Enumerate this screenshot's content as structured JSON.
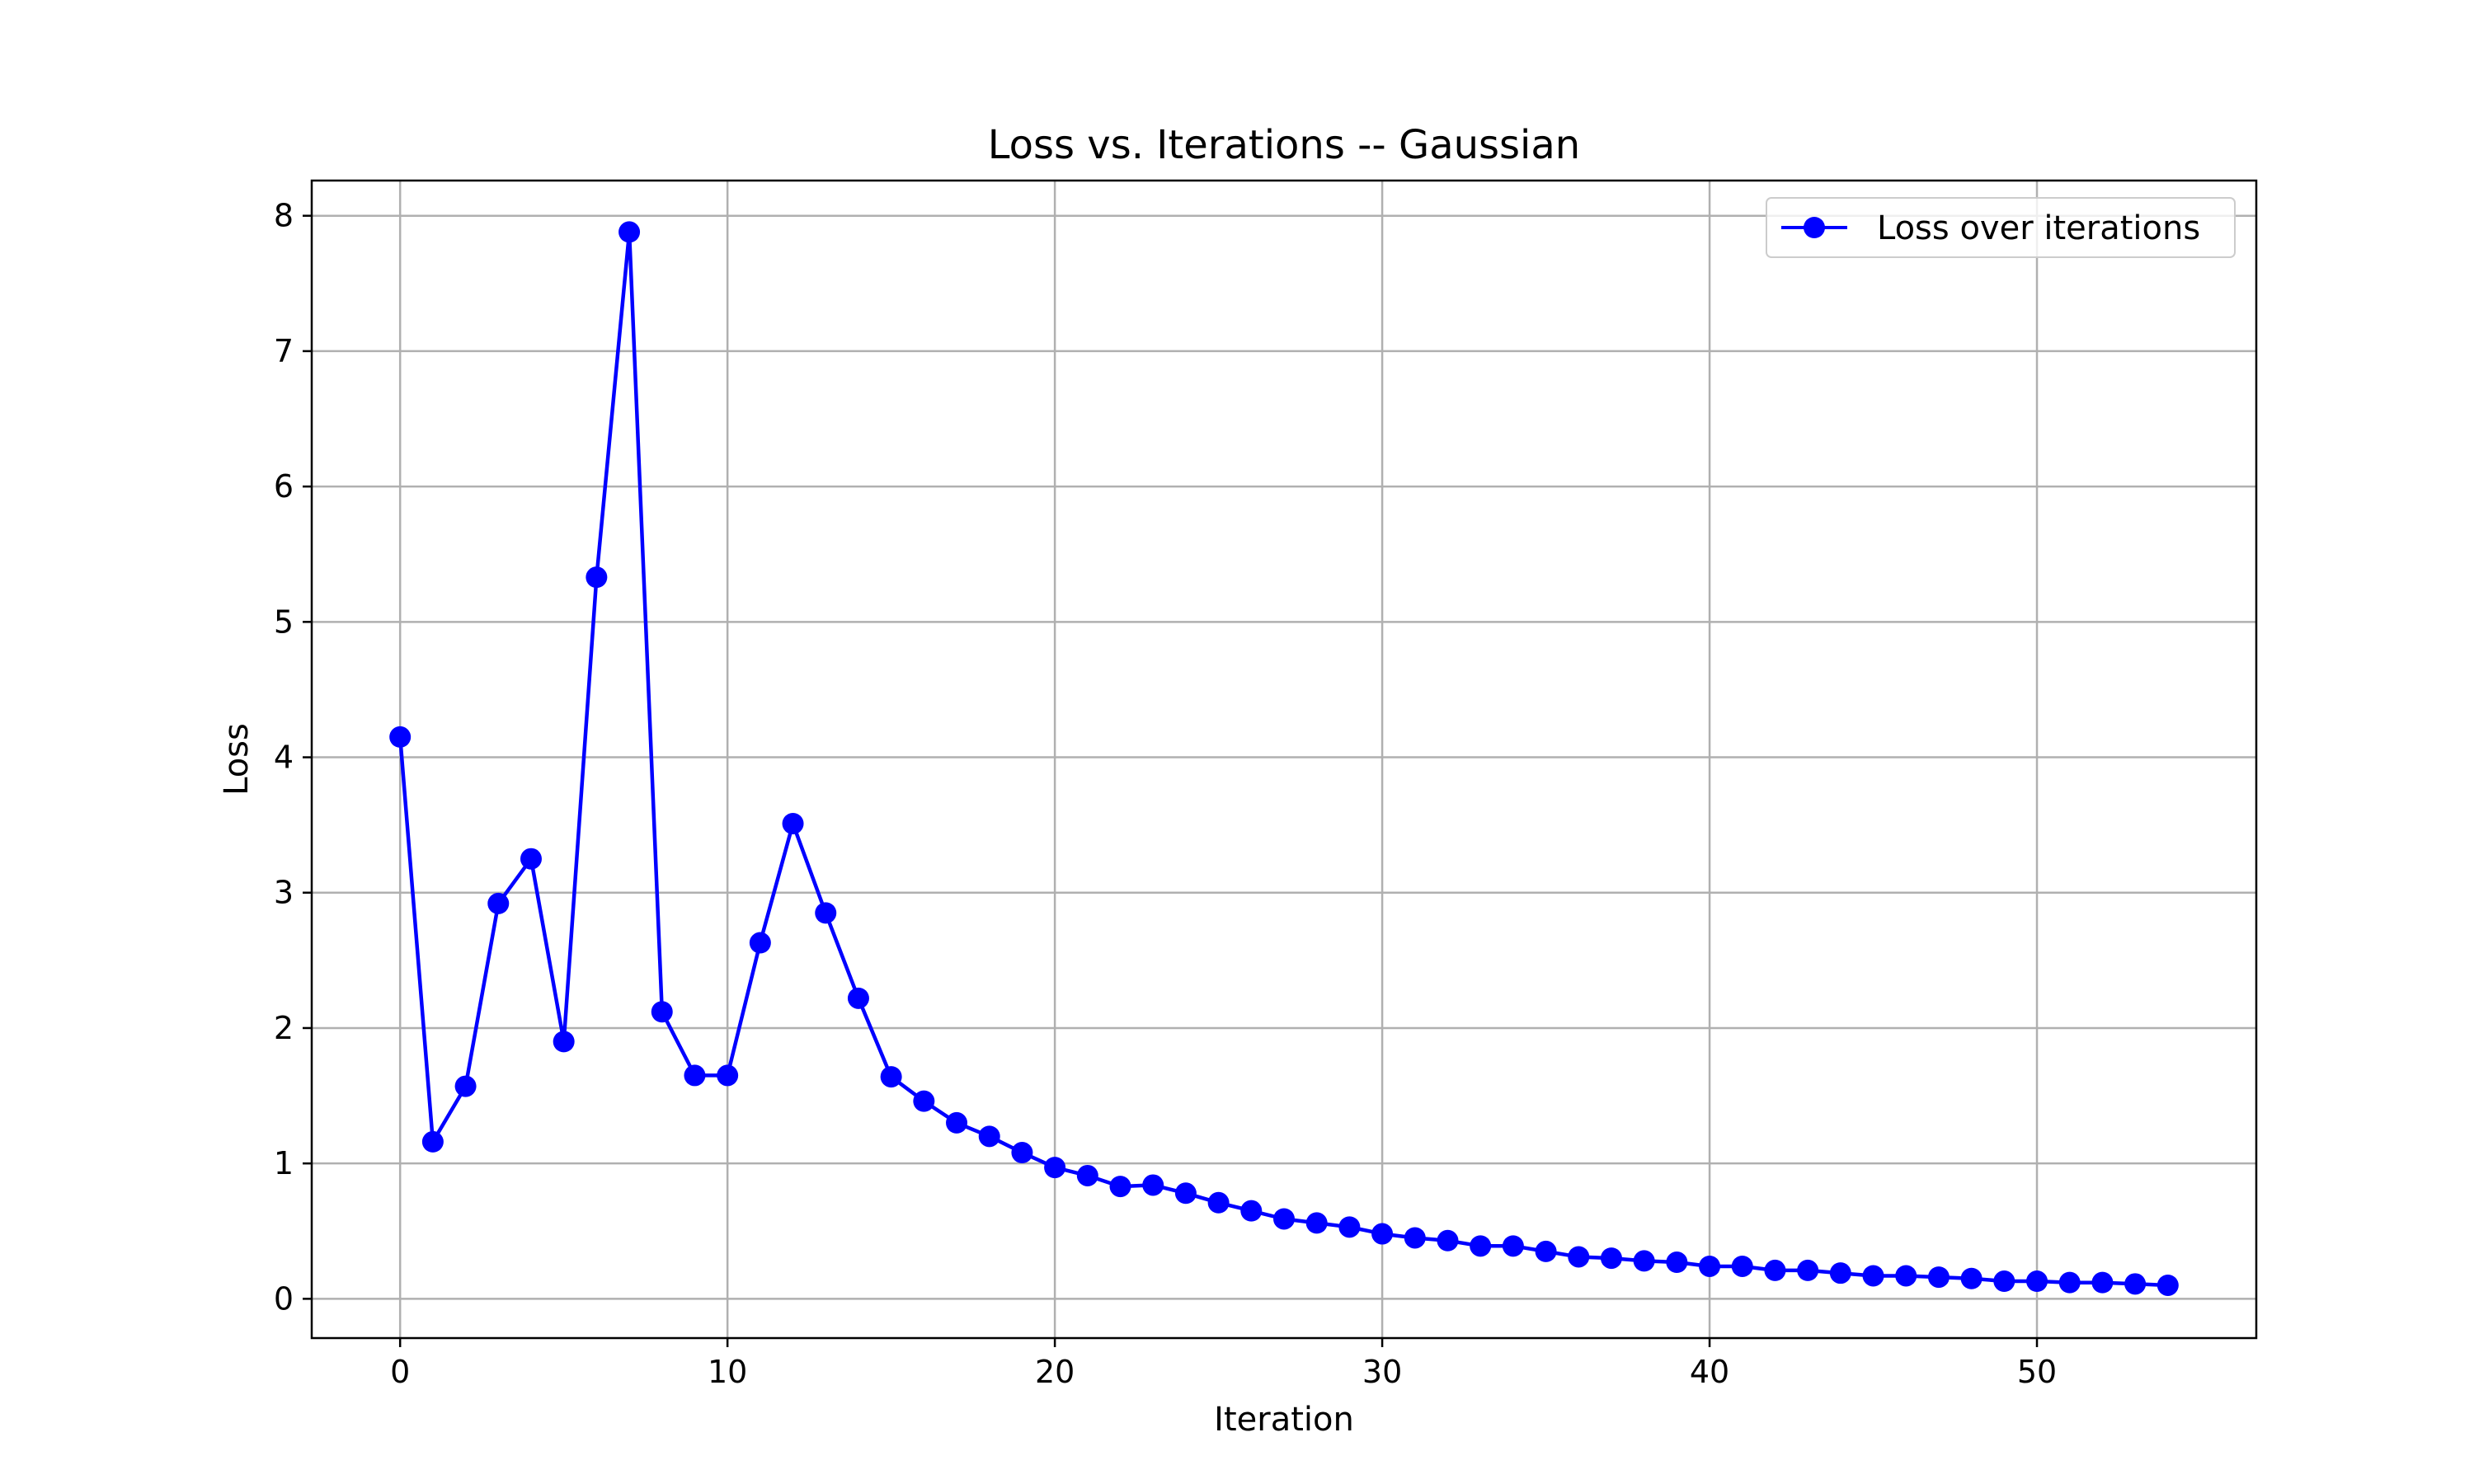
{
  "chart_data": {
    "type": "line",
    "title": "Loss vs. Iterations -- Gaussian",
    "xlabel": "Iteration",
    "ylabel": "Loss",
    "xlim": [
      -2.7,
      56.7
    ],
    "ylim": [
      -0.29,
      8.26
    ],
    "xticks": [
      0,
      10,
      20,
      30,
      40,
      50
    ],
    "yticks": [
      0,
      1,
      2,
      3,
      4,
      5,
      6,
      7,
      8
    ],
    "grid": true,
    "legend_position": "upper right",
    "series": [
      {
        "name": "Loss over iterations",
        "color": "#0000ff",
        "marker": "circle",
        "x": [
          0,
          1,
          2,
          3,
          4,
          5,
          6,
          7,
          8,
          9,
          10,
          11,
          12,
          13,
          14,
          15,
          16,
          17,
          18,
          19,
          20,
          21,
          22,
          23,
          24,
          25,
          26,
          27,
          28,
          29,
          30,
          31,
          32,
          33,
          34,
          35,
          36,
          37,
          38,
          39,
          40,
          41,
          42,
          43,
          44,
          45,
          46,
          47,
          48,
          49,
          50,
          51,
          52,
          53,
          54
        ],
        "y": [
          4.15,
          1.16,
          1.57,
          2.92,
          3.25,
          1.9,
          5.33,
          7.88,
          2.12,
          1.65,
          1.65,
          2.63,
          3.51,
          2.85,
          2.22,
          1.64,
          1.46,
          1.3,
          1.2,
          1.08,
          0.97,
          0.91,
          0.83,
          0.84,
          0.78,
          0.71,
          0.65,
          0.59,
          0.56,
          0.53,
          0.48,
          0.45,
          0.43,
          0.39,
          0.39,
          0.35,
          0.31,
          0.3,
          0.28,
          0.27,
          0.24,
          0.24,
          0.21,
          0.21,
          0.19,
          0.17,
          0.17,
          0.16,
          0.15,
          0.13,
          0.13,
          0.12,
          0.12,
          0.11,
          0.1
        ]
      }
    ]
  }
}
